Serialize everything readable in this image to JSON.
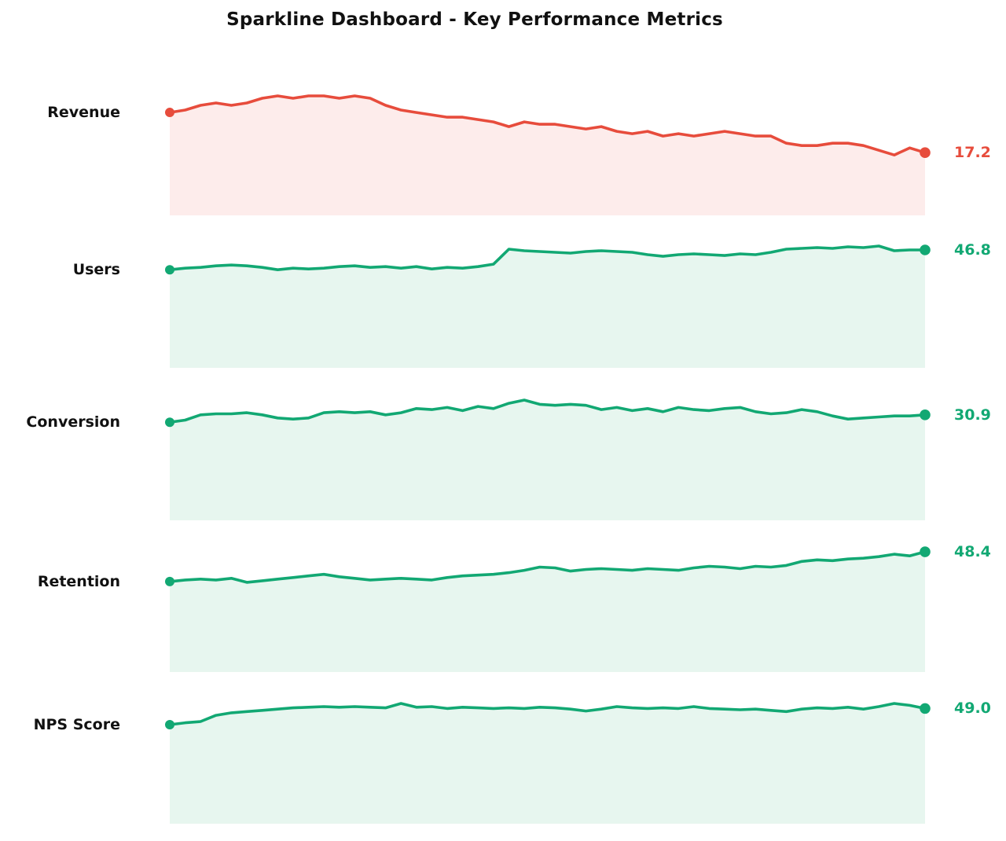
{
  "chart_data": {
    "type": "line",
    "subtype": "sparklines",
    "title": "Sparkline Dashboard - Key Performance Metrics",
    "legend": "none",
    "grid": false,
    "axes_visible": false,
    "metrics": [
      {
        "label": "Revenue",
        "last_value": "17.2",
        "trend": "down",
        "line_color": "#e74c3c",
        "fill_color": "#fdeceb",
        "values": [
          18.9,
          19.0,
          19.2,
          19.3,
          19.2,
          19.3,
          19.5,
          19.6,
          19.5,
          19.6,
          19.6,
          19.5,
          19.6,
          19.5,
          19.2,
          19.0,
          18.9,
          18.8,
          18.7,
          18.7,
          18.6,
          18.5,
          18.3,
          18.5,
          18.4,
          18.4,
          18.3,
          18.2,
          18.3,
          18.1,
          18.0,
          18.1,
          17.9,
          18.0,
          17.9,
          18.0,
          18.1,
          18.0,
          17.9,
          17.9,
          17.6,
          17.5,
          17.5,
          17.6,
          17.6,
          17.5,
          17.3,
          17.1,
          17.4,
          17.2
        ]
      },
      {
        "label": "Users",
        "last_value": "46.8",
        "trend": "up",
        "line_color": "#12a873",
        "fill_color": "#e7f6ef",
        "values": [
          44.3,
          44.5,
          44.6,
          44.8,
          44.9,
          44.8,
          44.6,
          44.3,
          44.5,
          44.4,
          44.5,
          44.7,
          44.8,
          44.6,
          44.7,
          44.5,
          44.7,
          44.4,
          44.6,
          44.5,
          44.7,
          45.0,
          46.9,
          46.7,
          46.6,
          46.5,
          46.4,
          46.6,
          46.7,
          46.6,
          46.5,
          46.2,
          46.0,
          46.2,
          46.3,
          46.2,
          46.1,
          46.3,
          46.2,
          46.5,
          46.9,
          47.0,
          47.1,
          47.0,
          47.2,
          47.1,
          47.3,
          46.7,
          46.8,
          46.8
        ]
      },
      {
        "label": "Conversion",
        "last_value": "30.9",
        "trend": "up",
        "line_color": "#12a873",
        "fill_color": "#e7f6ef",
        "values": [
          30.2,
          30.4,
          30.9,
          31.0,
          31.0,
          31.1,
          30.9,
          30.6,
          30.5,
          30.6,
          31.1,
          31.2,
          31.1,
          31.2,
          30.9,
          31.1,
          31.5,
          31.4,
          31.6,
          31.3,
          31.7,
          31.5,
          32.0,
          32.3,
          31.9,
          31.8,
          31.9,
          31.8,
          31.4,
          31.6,
          31.3,
          31.5,
          31.2,
          31.6,
          31.4,
          31.3,
          31.5,
          31.6,
          31.2,
          31.0,
          31.1,
          31.4,
          31.2,
          30.8,
          30.5,
          30.6,
          30.7,
          30.8,
          30.8,
          30.9
        ]
      },
      {
        "label": "Retention",
        "last_value": "48.4",
        "trend": "up",
        "line_color": "#12a873",
        "fill_color": "#e7f6ef",
        "values": [
          44.7,
          44.9,
          45.0,
          44.9,
          45.1,
          44.6,
          44.8,
          45.0,
          45.2,
          45.4,
          45.6,
          45.3,
          45.1,
          44.9,
          45.0,
          45.1,
          45.0,
          44.9,
          45.2,
          45.4,
          45.5,
          45.6,
          45.8,
          46.1,
          46.5,
          46.4,
          46.0,
          46.2,
          46.3,
          46.2,
          46.1,
          46.3,
          46.2,
          46.1,
          46.4,
          46.6,
          46.5,
          46.3,
          46.6,
          46.5,
          46.7,
          47.2,
          47.4,
          47.3,
          47.5,
          47.6,
          47.8,
          48.1,
          47.9,
          48.4
        ]
      },
      {
        "label": "NPS Score",
        "last_value": "49.0",
        "trend": "up",
        "line_color": "#12a873",
        "fill_color": "#e7f6ef",
        "values": [
          46.4,
          46.7,
          46.9,
          47.9,
          48.3,
          48.5,
          48.7,
          48.9,
          49.1,
          49.2,
          49.3,
          49.2,
          49.3,
          49.2,
          49.1,
          49.8,
          49.2,
          49.3,
          49.0,
          49.2,
          49.1,
          49.0,
          49.1,
          49.0,
          49.2,
          49.1,
          48.9,
          48.6,
          48.9,
          49.3,
          49.1,
          49.0,
          49.1,
          49.0,
          49.3,
          49.0,
          48.9,
          48.8,
          48.9,
          48.7,
          48.5,
          48.9,
          49.1,
          49.0,
          49.2,
          48.9,
          49.3,
          49.8,
          49.5,
          49.0
        ]
      }
    ],
    "colors": {
      "positive": "#12a873",
      "negative": "#e74c3c",
      "positive_fill": "#e7f6ef",
      "negative_fill": "#fdeceb",
      "title_text": "#111111",
      "label_text": "#111111",
      "background": "#ffffff"
    }
  }
}
